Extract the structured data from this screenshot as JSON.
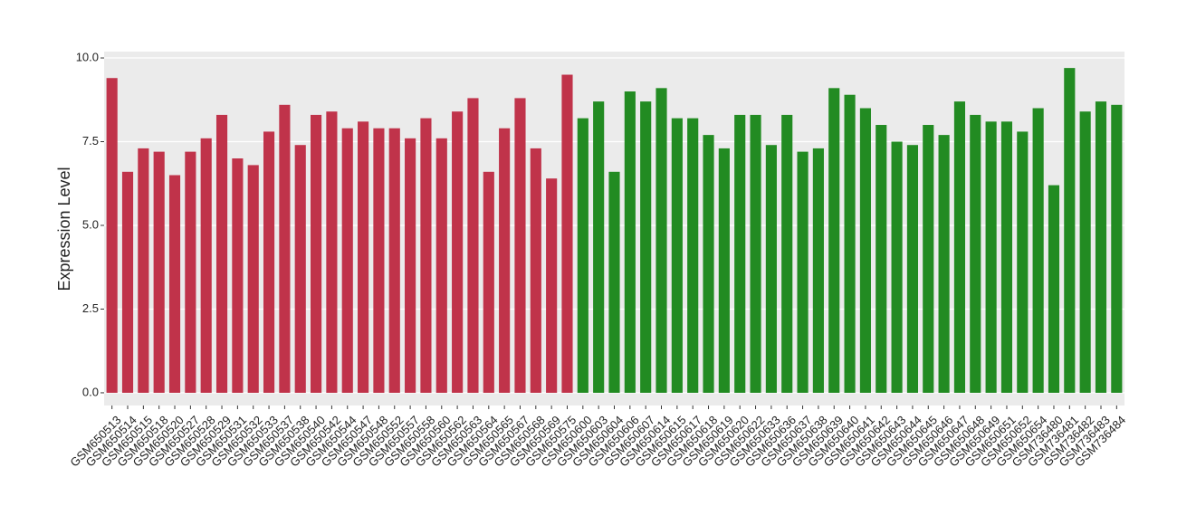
{
  "chart_data": {
    "type": "bar",
    "ylabel": "Expression Level",
    "categories": [
      "GSM650513",
      "GSM650514",
      "GSM650515",
      "GSM650518",
      "GSM650520",
      "GSM650527",
      "GSM650528",
      "GSM650529",
      "GSM650531",
      "GSM650532",
      "GSM650533",
      "GSM650537",
      "GSM650538",
      "GSM650540",
      "GSM650542",
      "GSM650544",
      "GSM650547",
      "GSM650548",
      "GSM650552",
      "GSM650557",
      "GSM650558",
      "GSM650560",
      "GSM650562",
      "GSM650563",
      "GSM650564",
      "GSM650565",
      "GSM650567",
      "GSM650568",
      "GSM650569",
      "GSM650575",
      "GSM650600",
      "GSM650603",
      "GSM650604",
      "GSM650606",
      "GSM650607",
      "GSM650614",
      "GSM650615",
      "GSM650617",
      "GSM650618",
      "GSM650619",
      "GSM650620",
      "GSM650622",
      "GSM650633",
      "GSM650636",
      "GSM650637",
      "GSM650638",
      "GSM650639",
      "GSM650640",
      "GSM650641",
      "GSM650642",
      "GSM650643",
      "GSM650644",
      "GSM650645",
      "GSM650646",
      "GSM650647",
      "GSM650648",
      "GSM650649",
      "GSM650651",
      "GSM650652",
      "GSM650654",
      "GSM736480",
      "GSM736481",
      "GSM736482",
      "GSM736483",
      "GSM736484"
    ],
    "values": [
      9.4,
      6.6,
      7.3,
      7.2,
      6.5,
      7.2,
      7.6,
      8.3,
      7.0,
      6.8,
      7.8,
      8.6,
      7.4,
      8.3,
      8.4,
      7.9,
      8.1,
      7.9,
      7.9,
      7.6,
      8.2,
      7.6,
      8.4,
      8.8,
      6.6,
      7.9,
      8.8,
      7.3,
      6.4,
      9.5,
      8.2,
      8.7,
      6.6,
      9.0,
      8.7,
      9.1,
      8.2,
      8.2,
      7.7,
      7.3,
      8.3,
      8.3,
      7.4,
      8.3,
      7.2,
      7.3,
      9.1,
      8.9,
      8.5,
      8.0,
      7.5,
      7.4,
      8.0,
      7.7,
      8.7,
      8.3,
      8.1,
      8.1,
      7.8,
      8.5,
      6.2,
      9.7,
      8.4,
      8.7,
      8.6
    ],
    "colors": [
      "#c0334a",
      "#c0334a",
      "#c0334a",
      "#c0334a",
      "#c0334a",
      "#c0334a",
      "#c0334a",
      "#c0334a",
      "#c0334a",
      "#c0334a",
      "#c0334a",
      "#c0334a",
      "#c0334a",
      "#c0334a",
      "#c0334a",
      "#c0334a",
      "#c0334a",
      "#c0334a",
      "#c0334a",
      "#c0334a",
      "#c0334a",
      "#c0334a",
      "#c0334a",
      "#c0334a",
      "#c0334a",
      "#c0334a",
      "#c0334a",
      "#c0334a",
      "#c0334a",
      "#c0334a",
      "#228b22",
      "#228b22",
      "#228b22",
      "#228b22",
      "#228b22",
      "#228b22",
      "#228b22",
      "#228b22",
      "#228b22",
      "#228b22",
      "#228b22",
      "#228b22",
      "#228b22",
      "#228b22",
      "#228b22",
      "#228b22",
      "#228b22",
      "#228b22",
      "#228b22",
      "#228b22",
      "#228b22",
      "#228b22",
      "#228b22",
      "#228b22",
      "#228b22",
      "#228b22",
      "#228b22",
      "#228b22",
      "#228b22",
      "#228b22",
      "#228b22",
      "#228b22",
      "#228b22",
      "#228b22",
      "#228b22"
    ],
    "ylim": [
      -0.38,
      10.19
    ],
    "yticks": [
      {
        "value": 0,
        "label": "0.0"
      },
      {
        "value": 2.5,
        "label": "2.5"
      },
      {
        "value": 5,
        "label": "5.0"
      },
      {
        "value": 7.5,
        "label": "7.5"
      },
      {
        "value": 10,
        "label": "10.0"
      }
    ],
    "grid": true
  }
}
